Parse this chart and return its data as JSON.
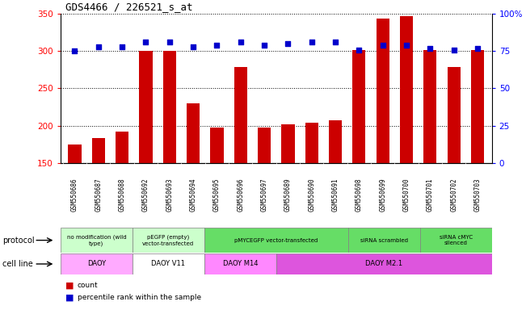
{
  "title": "GDS4466 / 226521_s_at",
  "samples": [
    "GSM550686",
    "GSM550687",
    "GSM550688",
    "GSM550692",
    "GSM550693",
    "GSM550694",
    "GSM550695",
    "GSM550696",
    "GSM550697",
    "GSM550689",
    "GSM550690",
    "GSM550691",
    "GSM550698",
    "GSM550699",
    "GSM550700",
    "GSM550701",
    "GSM550702",
    "GSM550703"
  ],
  "counts": [
    175,
    183,
    192,
    300,
    300,
    230,
    197,
    279,
    197,
    202,
    204,
    207,
    301,
    344,
    347,
    301,
    279,
    301
  ],
  "percentiles": [
    75,
    78,
    78,
    81,
    81,
    78,
    79,
    81,
    79,
    80,
    81,
    81,
    76,
    79,
    79,
    77,
    76,
    77
  ],
  "ylim_left": [
    150,
    350
  ],
  "ylim_right": [
    0,
    100
  ],
  "yticks_left": [
    150,
    200,
    250,
    300,
    350
  ],
  "yticks_right": [
    0,
    25,
    50,
    75,
    100
  ],
  "bar_color": "#cc0000",
  "dot_color": "#0000cc",
  "protocol_groups": [
    {
      "label": "no modification (wild\ntype)",
      "start": 0,
      "end": 3,
      "color": "#ccffcc"
    },
    {
      "label": "pEGFP (empty)\nvector-transfected",
      "start": 3,
      "end": 6,
      "color": "#ccffcc"
    },
    {
      "label": "pMYCEGFP vector-transfected",
      "start": 6,
      "end": 12,
      "color": "#66dd66"
    },
    {
      "label": "siRNA scrambled",
      "start": 12,
      "end": 15,
      "color": "#66dd66"
    },
    {
      "label": "siRNA cMYC\nsilenced",
      "start": 15,
      "end": 18,
      "color": "#66dd66"
    }
  ],
  "cell_line_groups": [
    {
      "label": "DAOY",
      "start": 0,
      "end": 3,
      "color": "#ffaaff"
    },
    {
      "label": "DAOY V11",
      "start": 3,
      "end": 6,
      "color": "#ffffff"
    },
    {
      "label": "DAOY M14",
      "start": 6,
      "end": 9,
      "color": "#ff88ff"
    },
    {
      "label": "DAOY M2.1",
      "start": 9,
      "end": 18,
      "color": "#dd55dd"
    }
  ],
  "xtick_bg_color": "#d4d4d4",
  "legend_count_label": "count",
  "legend_percentile_label": "percentile rank within the sample",
  "protocol_label": "protocol",
  "cell_line_label": "cell line"
}
